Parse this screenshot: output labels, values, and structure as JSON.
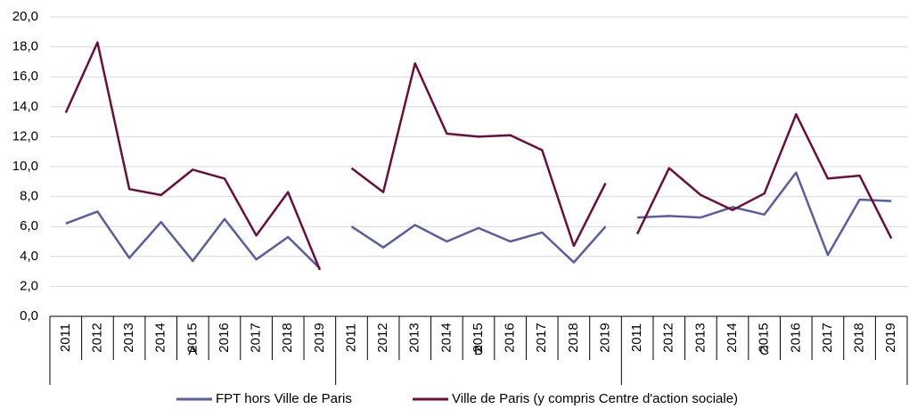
{
  "chart_data": {
    "type": "line",
    "categories": [
      "2011",
      "2012",
      "2013",
      "2014",
      "2015",
      "2016",
      "2017",
      "2018",
      "2019",
      "2011",
      "2012",
      "2013",
      "2014",
      "2015",
      "2016",
      "2017",
      "2018",
      "2019",
      "2011",
      "2012",
      "2013",
      "2014",
      "2015",
      "2016",
      "2017",
      "2018",
      "2019"
    ],
    "category_groups": [
      "A",
      "B",
      "C"
    ],
    "series": [
      {
        "name": "FPT hors Ville de Paris",
        "color": "#5a5e9e",
        "values": [
          6.2,
          7.0,
          3.9,
          6.3,
          3.7,
          6.5,
          3.8,
          5.3,
          3.2,
          6.0,
          4.6,
          6.1,
          5.0,
          5.9,
          5.0,
          5.6,
          3.6,
          6.0,
          6.6,
          6.7,
          6.6,
          7.3,
          6.8,
          9.6,
          4.1,
          7.8,
          7.7
        ]
      },
      {
        "name": "Ville de Paris (y compris Centre d'action sociale)",
        "color": "#6b0f3a",
        "values": [
          13.6,
          18.3,
          8.5,
          8.1,
          9.8,
          9.2,
          5.4,
          8.3,
          3.1,
          9.9,
          8.3,
          16.9,
          12.2,
          12.0,
          12.1,
          11.1,
          4.7,
          8.9,
          5.5,
          9.9,
          8.1,
          7.1,
          8.2,
          13.5,
          9.2,
          9.4,
          5.2
        ]
      }
    ],
    "ylim": [
      0,
      20
    ],
    "yticks": [
      {
        "value": 0,
        "label": "0,0"
      },
      {
        "value": 2,
        "label": "2,0"
      },
      {
        "value": 4,
        "label": "4,0"
      },
      {
        "value": 6,
        "label": "6,0"
      },
      {
        "value": 8,
        "label": "8,0"
      },
      {
        "value": 10,
        "label": "10,0"
      },
      {
        "value": 12,
        "label": "12,0"
      },
      {
        "value": 14,
        "label": "14,0"
      },
      {
        "value": 16,
        "label": "16,0"
      },
      {
        "value": 18,
        "label": "18,0"
      },
      {
        "value": 20,
        "label": "20,0"
      }
    ],
    "grid": true,
    "legend": "bottom"
  }
}
